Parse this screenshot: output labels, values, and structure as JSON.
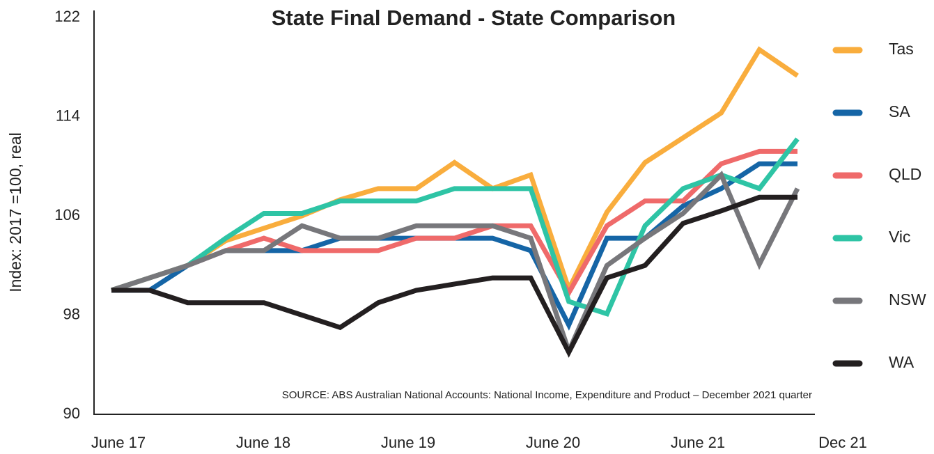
{
  "chart_data": {
    "type": "line",
    "title": "State Final Demand - State Comparison",
    "y_label": "Index: 2017 =100, real",
    "annotation": "SOURCE: ABS Australian National Accounts: National Income, Expenditure and Product – December 2021 quarter",
    "categories": [
      "June 17",
      null,
      null,
      null,
      "June 18",
      null,
      null,
      null,
      "June 19",
      null,
      null,
      null,
      "June 20",
      null,
      null,
      null,
      "June 21",
      null,
      "Dec 21"
    ],
    "ylim": [
      90,
      122
    ],
    "yticks": [
      90,
      98,
      106,
      114,
      122
    ],
    "legend": "right",
    "series": [
      {
        "name": "Tas",
        "color": "#f9ad3d",
        "values": [
          100,
          101,
          102,
          104,
          105,
          106,
          107.3,
          108.2,
          108.2,
          110.3,
          108.2,
          109.3,
          100.1,
          106.3,
          110.3,
          112.3,
          114.3,
          119.4,
          117.3
        ]
      },
      {
        "name": "SA",
        "color": "#1565a6",
        "values": [
          100,
          100,
          102,
          103.2,
          103.2,
          103.2,
          104.2,
          104.2,
          104.2,
          104.2,
          104.2,
          103.2,
          97.2,
          104.2,
          104.2,
          106.8,
          108.2,
          110.2,
          110.2
        ]
      },
      {
        "name": "QLD",
        "color": "#ef6a6a",
        "values": [
          100,
          101,
          102,
          103.2,
          104.2,
          103.2,
          103.2,
          103.2,
          104.2,
          104.2,
          105.2,
          105.2,
          99.8,
          105.2,
          107.2,
          107.2,
          110.2,
          111.2,
          111.2
        ]
      },
      {
        "name": "Vic",
        "color": "#2ec4a5",
        "values": [
          100,
          101,
          102,
          104.2,
          106.2,
          106.2,
          107.2,
          107.2,
          107.2,
          108.2,
          108.2,
          108.2,
          99.1,
          98.1,
          105.2,
          108.2,
          109.3,
          108.2,
          112.2
        ]
      },
      {
        "name": "NSW",
        "color": "#77777b",
        "values": [
          100,
          101,
          102,
          103.2,
          103.2,
          105.2,
          104.2,
          104.2,
          105.2,
          105.2,
          105.2,
          104.2,
          95.1,
          102,
          104.2,
          106.2,
          109.3,
          102.1,
          108.2
        ]
      },
      {
        "name": "WA",
        "color": "#231f20",
        "values": [
          100,
          100,
          99,
          99,
          99,
          98,
          97,
          99,
          100,
          100.5,
          101,
          101,
          95,
          101,
          102,
          105.4,
          106.4,
          107.5,
          107.5
        ]
      }
    ]
  }
}
